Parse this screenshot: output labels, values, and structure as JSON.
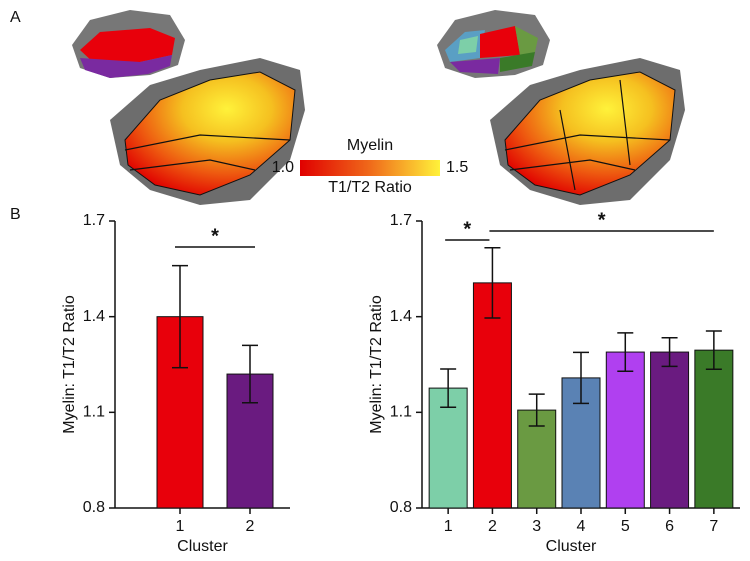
{
  "panels": [
    "A",
    "B"
  ],
  "colorbar": {
    "title": "Myelin",
    "label": "T1/T2 Ratio",
    "ticks": [
      {
        "value": 1,
        "label": "1.0"
      },
      {
        "value": 1.5,
        "label": "1.5"
      }
    ],
    "colors": [
      "#e00000",
      "#f06a1a",
      "#fff23a"
    ]
  },
  "chart_data": [
    {
      "type": "bar",
      "xlabel": "Cluster",
      "ylabel": "Myelin: T1/T2 Ratio",
      "categories": [
        "1",
        "2"
      ],
      "values": [
        1.4,
        1.22
      ],
      "errors": [
        0.16,
        0.09
      ],
      "colors": [
        "#e8000b",
        "#6a1b80"
      ],
      "ylim": [
        0.8,
        1.7
      ],
      "yticks": [
        0.8,
        1.1,
        1.4,
        1.7
      ],
      "significance": [
        {
          "label": "*",
          "categories": [
            "1",
            "2"
          ]
        }
      ]
    },
    {
      "type": "bar",
      "xlabel": "Cluster",
      "ylabel": "Myelin: T1/T2 Ratio",
      "categories": [
        "1",
        "2",
        "3",
        "4",
        "5",
        "6",
        "7"
      ],
      "values": [
        1.176,
        1.506,
        1.107,
        1.208,
        1.289,
        1.289,
        1.295
      ],
      "errors": [
        0.06,
        0.11,
        0.05,
        0.08,
        0.06,
        0.045,
        0.06
      ],
      "colors": [
        "#7dcfa8",
        "#e8000b",
        "#6a9a42",
        "#5a82b4",
        "#b040f0",
        "#6a1b80",
        "#3a7a28"
      ],
      "ylim": [
        0.8,
        1.7
      ],
      "yticks": [
        0.8,
        1.1,
        1.4,
        1.7
      ],
      "significance": [
        {
          "label": "*",
          "categories": [
            "1",
            "2"
          ]
        },
        {
          "label": "*",
          "categories": [
            "2",
            "7"
          ]
        }
      ]
    }
  ]
}
